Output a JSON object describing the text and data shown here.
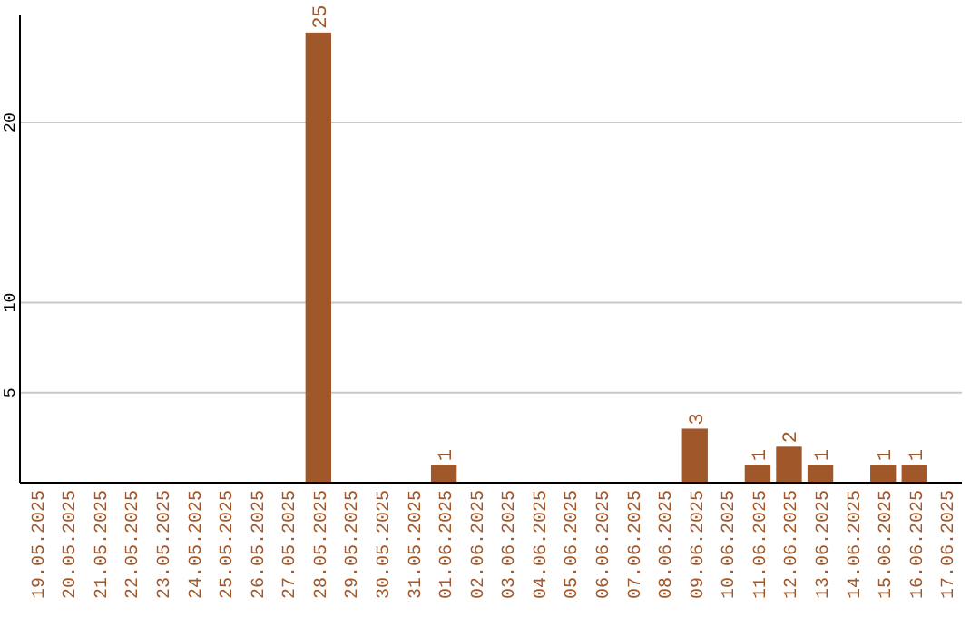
{
  "chart_data": {
    "type": "bar",
    "categories": [
      "19.05.2025",
      "20.05.2025",
      "21.05.2025",
      "22.05.2025",
      "23.05.2025",
      "24.05.2025",
      "25.05.2025",
      "26.05.2025",
      "27.05.2025",
      "28.05.2025",
      "29.05.2025",
      "30.05.2025",
      "31.05.2025",
      "01.06.2025",
      "02.06.2025",
      "03.06.2025",
      "04.06.2025",
      "05.06.2025",
      "06.06.2025",
      "07.06.2025",
      "08.06.2025",
      "09.06.2025",
      "10.06.2025",
      "11.06.2025",
      "12.06.2025",
      "13.06.2025",
      "14.06.2025",
      "15.06.2025",
      "16.06.2025",
      "17.06.2025"
    ],
    "values": [
      0,
      0,
      0,
      0,
      0,
      0,
      0,
      0,
      0,
      25,
      0,
      0,
      0,
      1,
      0,
      0,
      0,
      0,
      0,
      0,
      0,
      3,
      0,
      1,
      2,
      1,
      0,
      1,
      1,
      0
    ],
    "value_labels": [
      null,
      null,
      null,
      null,
      null,
      null,
      null,
      null,
      null,
      "25",
      null,
      null,
      null,
      "1",
      null,
      null,
      null,
      null,
      null,
      null,
      null,
      "3",
      null,
      "1",
      "2",
      "1",
      null,
      "1",
      "1",
      null
    ],
    "color": "#a0572a",
    "ylim": [
      0,
      26
    ],
    "yticks": [
      5,
      10,
      20
    ],
    "grid": "y"
  }
}
